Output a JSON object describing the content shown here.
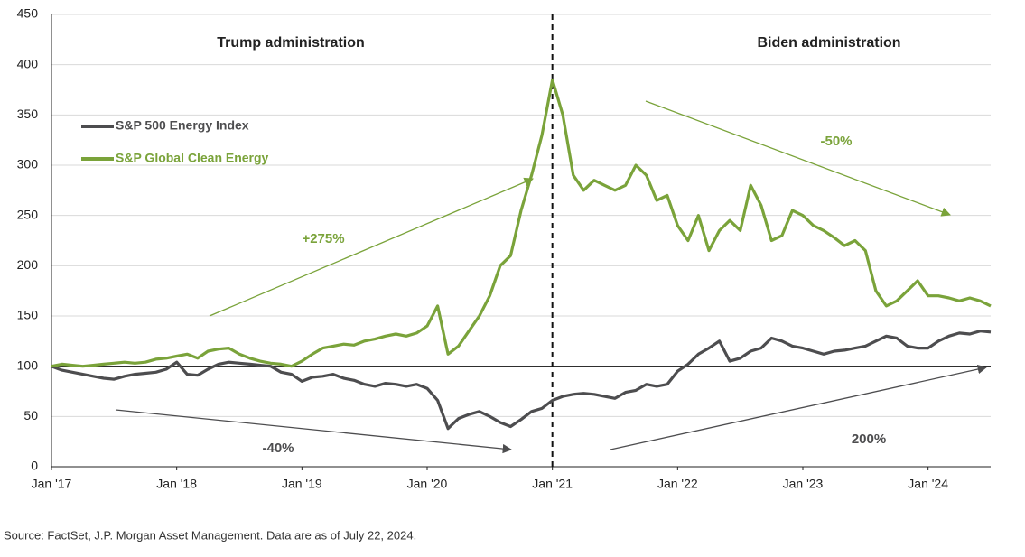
{
  "chart_data": {
    "type": "line",
    "x": [
      "2017-01",
      "2017-02",
      "2017-03",
      "2017-04",
      "2017-05",
      "2017-06",
      "2017-07",
      "2017-08",
      "2017-09",
      "2017-10",
      "2017-11",
      "2017-12",
      "2018-01",
      "2018-02",
      "2018-03",
      "2018-04",
      "2018-05",
      "2018-06",
      "2018-07",
      "2018-08",
      "2018-09",
      "2018-10",
      "2018-11",
      "2018-12",
      "2019-01",
      "2019-02",
      "2019-03",
      "2019-04",
      "2019-05",
      "2019-06",
      "2019-07",
      "2019-08",
      "2019-09",
      "2019-10",
      "2019-11",
      "2019-12",
      "2020-01",
      "2020-02",
      "2020-03",
      "2020-04",
      "2020-05",
      "2020-06",
      "2020-07",
      "2020-08",
      "2020-09",
      "2020-10",
      "2020-11",
      "2020-12",
      "2021-01",
      "2021-02",
      "2021-03",
      "2021-04",
      "2021-05",
      "2021-06",
      "2021-07",
      "2021-08",
      "2021-09",
      "2021-10",
      "2021-11",
      "2021-12",
      "2022-01",
      "2022-02",
      "2022-03",
      "2022-04",
      "2022-05",
      "2022-06",
      "2022-07",
      "2022-08",
      "2022-09",
      "2022-10",
      "2022-11",
      "2022-12",
      "2023-01",
      "2023-02",
      "2023-03",
      "2023-04",
      "2023-05",
      "2023-06",
      "2023-07",
      "2023-08",
      "2023-09",
      "2023-10",
      "2023-11",
      "2023-12",
      "2024-01",
      "2024-02",
      "2024-03",
      "2024-04",
      "2024-05",
      "2024-06",
      "2024-07"
    ],
    "series": [
      {
        "name": "S&P 500 Energy Index",
        "color": "#4d4d4f",
        "values": [
          100,
          96,
          94,
          92,
          90,
          88,
          87,
          90,
          92,
          93,
          94,
          97,
          104,
          92,
          91,
          97,
          102,
          104,
          103,
          102,
          101,
          100,
          94,
          92,
          85,
          89,
          90,
          92,
          88,
          86,
          82,
          80,
          83,
          82,
          80,
          82,
          78,
          66,
          38,
          48,
          52,
          55,
          50,
          44,
          40,
          47,
          55,
          58,
          66,
          70,
          72,
          73,
          72,
          70,
          68,
          74,
          76,
          82,
          80,
          82,
          95,
          102,
          112,
          118,
          125,
          105,
          108,
          115,
          118,
          128,
          125,
          120,
          118,
          115,
          112,
          115,
          116,
          118,
          120,
          125,
          130,
          128,
          120,
          118,
          118,
          125,
          130,
          133,
          132,
          135,
          134
        ]
      },
      {
        "name": "S&P Global Clean Energy",
        "color": "#7aa33a",
        "values": [
          100,
          102,
          101,
          100,
          101,
          102,
          103,
          104,
          103,
          104,
          107,
          108,
          110,
          112,
          108,
          115,
          117,
          118,
          112,
          108,
          105,
          103,
          102,
          100,
          105,
          112,
          118,
          120,
          122,
          121,
          125,
          127,
          130,
          132,
          130,
          133,
          140,
          160,
          112,
          120,
          135,
          150,
          170,
          200,
          210,
          255,
          290,
          330,
          385,
          350,
          290,
          275,
          285,
          280,
          275,
          280,
          300,
          290,
          265,
          270,
          240,
          225,
          250,
          215,
          235,
          245,
          235,
          280,
          260,
          225,
          230,
          255,
          250,
          240,
          235,
          228,
          220,
          225,
          215,
          175,
          160,
          165,
          175,
          185,
          170,
          170,
          168,
          165,
          168,
          165,
          160
        ]
      }
    ],
    "xlim": [
      "2017-01",
      "2024-07"
    ],
    "xticks": [
      {
        "value": "2017-01",
        "label": "Jan '17"
      },
      {
        "value": "2018-01",
        "label": "Jan '18"
      },
      {
        "value": "2019-01",
        "label": "Jan '19"
      },
      {
        "value": "2020-01",
        "label": "Jan '20"
      },
      {
        "value": "2021-01",
        "label": "Jan '21"
      },
      {
        "value": "2022-01",
        "label": "Jan '22"
      },
      {
        "value": "2023-01",
        "label": "Jan '23"
      },
      {
        "value": "2024-01",
        "label": "Jan '24"
      }
    ],
    "ylim": [
      0,
      450
    ],
    "yticks": [
      0,
      50,
      100,
      150,
      200,
      250,
      300,
      350,
      400,
      450
    ],
    "grid": true,
    "event_line": "2021-01",
    "annotations": [
      "Trump administration",
      "Biden administration",
      "+275%",
      "-50%",
      "-40%",
      "200%"
    ],
    "source": "Source: FactSet, J.P. Morgan Asset Management. Data are as of July 22, 2024."
  }
}
